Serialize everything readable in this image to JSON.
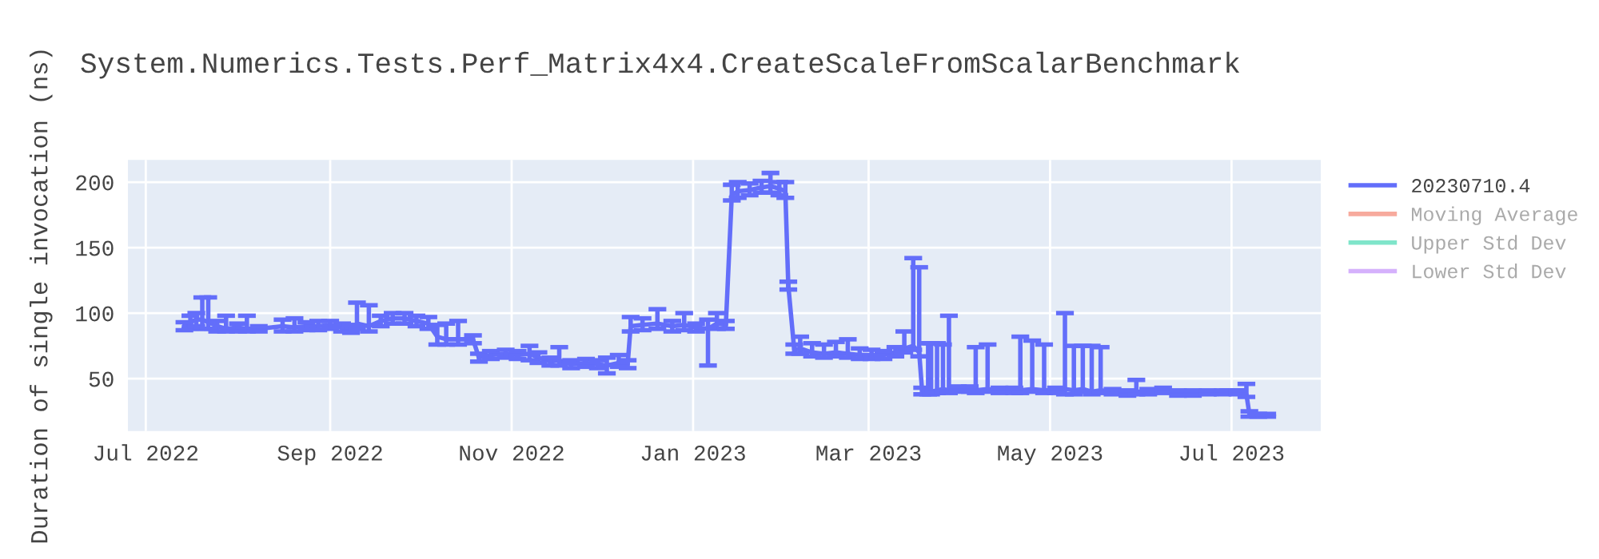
{
  "chart_data": {
    "type": "line",
    "title": "System.Numerics.Tests.Perf_Matrix4x4.CreateScaleFromScalarBenchmark",
    "ylabel": "Duration of single invocation (ns)",
    "xlim": [
      "2022-06-25",
      "2023-07-31"
    ],
    "xticks": [
      {
        "value": "2022-07-01",
        "label": "Jul 2022"
      },
      {
        "value": "2022-09-01",
        "label": "Sep 2022"
      },
      {
        "value": "2022-11-01",
        "label": "Nov 2022"
      },
      {
        "value": "2023-01-01",
        "label": "Jan 2023"
      },
      {
        "value": "2023-03-01",
        "label": "Mar 2023"
      },
      {
        "value": "2023-05-01",
        "label": "May 2023"
      },
      {
        "value": "2023-07-01",
        "label": "Jul 2023"
      }
    ],
    "ylim": [
      10,
      217
    ],
    "yticks": [
      50,
      100,
      150,
      200
    ],
    "grid": true,
    "legend": "top right",
    "series": [
      {
        "name": "20230710.4",
        "color": "#636efa",
        "x": [
          "2022-07-14",
          "2022-07-16",
          "2022-07-18",
          "2022-07-20",
          "2022-07-22",
          "2022-07-25",
          "2022-07-28",
          "2022-08-01",
          "2022-08-04",
          "2022-08-08",
          "2022-08-16",
          "2022-08-20",
          "2022-08-24",
          "2022-08-28",
          "2022-09-01",
          "2022-09-05",
          "2022-09-08",
          "2022-09-10",
          "2022-09-14",
          "2022-09-18",
          "2022-09-22",
          "2022-09-26",
          "2022-09-30",
          "2022-10-04",
          "2022-10-07",
          "2022-10-10",
          "2022-10-14",
          "2022-10-19",
          "2022-10-21",
          "2022-10-25",
          "2022-10-30",
          "2022-11-03",
          "2022-11-07",
          "2022-11-10",
          "2022-11-14",
          "2022-11-17",
          "2022-11-21",
          "2022-11-26",
          "2022-11-30",
          "2022-12-03",
          "2022-12-07",
          "2022-12-10",
          "2022-12-11",
          "2022-12-15",
          "2022-12-20",
          "2022-12-25",
          "2022-12-29",
          "2023-01-02",
          "2023-01-06",
          "2023-01-09",
          "2023-01-12",
          "2023-01-14",
          "2023-01-16",
          "2023-01-20",
          "2023-01-24",
          "2023-01-27",
          "2023-01-30",
          "2023-02-01",
          "2023-02-02",
          "2023-02-04",
          "2023-02-06",
          "2023-02-10",
          "2023-02-14",
          "2023-02-18",
          "2023-02-22",
          "2023-02-26",
          "2023-03-02",
          "2023-03-06",
          "2023-03-10",
          "2023-03-13",
          "2023-03-16",
          "2023-03-18",
          "2023-03-19",
          "2023-03-21",
          "2023-03-22",
          "2023-03-24",
          "2023-03-26",
          "2023-03-28",
          "2023-03-31",
          "2023-04-04",
          "2023-04-06",
          "2023-04-10",
          "2023-04-14",
          "2023-04-19",
          "2023-04-21",
          "2023-04-25",
          "2023-04-29",
          "2023-05-03",
          "2023-05-06",
          "2023-05-09",
          "2023-05-12",
          "2023-05-15",
          "2023-05-18",
          "2023-05-22",
          "2023-05-27",
          "2023-05-30",
          "2023-06-03",
          "2023-06-08",
          "2023-06-13",
          "2023-06-18",
          "2023-06-23",
          "2023-06-28",
          "2023-07-03",
          "2023-07-06",
          "2023-07-07",
          "2023-07-10",
          "2023-07-13"
        ],
        "values": [
          90,
          93,
          95,
          95,
          93,
          90,
          88,
          89,
          88,
          88,
          90,
          89,
          90,
          90,
          91,
          89,
          88,
          92,
          90,
          94,
          96,
          96,
          94,
          92,
          82,
          80,
          80,
          80,
          66,
          68,
          69,
          68,
          69,
          66,
          63,
          64,
          61,
          62,
          61,
          60,
          62,
          61,
          90,
          91,
          92,
          90,
          91,
          89,
          88,
          92,
          91,
          190,
          193,
          194,
          196,
          197,
          195,
          193,
          121,
          72,
          73,
          70,
          69,
          70,
          69,
          68,
          68,
          68,
          70,
          73,
          75,
          70,
          40,
          40,
          40,
          41,
          42,
          41,
          42,
          42,
          41,
          42,
          41,
          41,
          41,
          42,
          41,
          41,
          42,
          41,
          42,
          40,
          41,
          40,
          39,
          40,
          40,
          41,
          39,
          39,
          39,
          39,
          39,
          38,
          23,
          22,
          22
        ],
        "errors": [
          3,
          [
            88,
            98
          ],
          [
            90,
            100
          ],
          [
            88,
            112
          ],
          [
            88,
            112
          ],
          [
            86,
            94
          ],
          [
            86,
            98
          ],
          [
            86,
            92
          ],
          [
            86,
            98
          ],
          [
            86,
            90
          ],
          [
            86,
            95
          ],
          [
            86,
            96
          ],
          [
            87,
            93
          ],
          [
            87,
            94
          ],
          [
            88,
            94
          ],
          [
            86,
            92
          ],
          [
            85,
            91
          ],
          [
            88,
            108
          ],
          [
            86,
            106
          ],
          [
            90,
            98
          ],
          [
            92,
            100
          ],
          [
            92,
            100
          ],
          [
            90,
            98
          ],
          [
            88,
            97
          ],
          [
            76,
            91
          ],
          [
            76,
            92
          ],
          [
            76,
            94
          ],
          [
            77,
            83
          ],
          [
            63,
            69
          ],
          [
            65,
            71
          ],
          [
            66,
            72
          ],
          [
            65,
            71
          ],
          [
            64,
            75
          ],
          [
            62,
            70
          ],
          [
            60,
            66
          ],
          [
            60,
            74
          ],
          [
            58,
            64
          ],
          [
            59,
            65
          ],
          [
            58,
            64
          ],
          [
            54,
            66
          ],
          [
            59,
            68
          ],
          [
            58,
            64
          ],
          [
            86,
            97
          ],
          [
            87,
            96
          ],
          [
            88,
            103
          ],
          [
            86,
            94
          ],
          [
            87,
            100
          ],
          [
            86,
            92
          ],
          [
            60,
            95
          ],
          [
            88,
            100
          ],
          [
            88,
            94
          ],
          [
            186,
            198
          ],
          [
            188,
            200
          ],
          [
            190,
            199
          ],
          [
            192,
            201
          ],
          [
            192,
            207
          ],
          [
            190,
            200
          ],
          [
            188,
            200
          ],
          [
            118,
            124
          ],
          [
            69,
            76
          ],
          [
            69,
            82
          ],
          [
            67,
            77
          ],
          [
            66,
            76
          ],
          [
            67,
            78
          ],
          [
            66,
            80
          ],
          [
            65,
            73
          ],
          [
            65,
            72
          ],
          [
            65,
            71
          ],
          [
            67,
            74
          ],
          [
            70,
            86
          ],
          [
            72,
            142
          ],
          [
            67,
            135
          ],
          [
            38,
            43
          ],
          [
            38,
            77
          ],
          [
            38,
            77
          ],
          [
            39,
            77
          ],
          [
            40,
            76
          ],
          [
            39,
            98
          ],
          [
            40,
            44
          ],
          [
            40,
            44
          ],
          [
            39,
            74
          ],
          [
            40,
            76
          ],
          [
            39,
            43
          ],
          [
            39,
            43
          ],
          [
            39,
            82
          ],
          [
            40,
            79
          ],
          [
            39,
            76
          ],
          [
            39,
            43
          ],
          [
            38,
            100
          ],
          [
            38,
            75
          ],
          [
            40,
            75
          ],
          [
            38,
            75
          ],
          [
            39,
            74
          ],
          [
            38,
            42
          ],
          [
            37,
            41
          ],
          [
            38,
            49
          ],
          [
            38,
            42
          ],
          [
            39,
            43
          ],
          [
            37,
            41
          ],
          [
            37,
            41
          ],
          [
            38,
            41
          ],
          [
            38,
            41
          ],
          [
            38,
            41
          ],
          [
            36,
            46
          ],
          [
            21,
            25
          ],
          [
            21,
            23
          ],
          [
            21,
            23
          ]
        ]
      },
      {
        "name": "Moving Average",
        "color": "#ef553b"
      },
      {
        "name": "Upper Std Dev",
        "color": "#00cc96"
      },
      {
        "name": "Lower Std Dev",
        "color": "#ab63fa"
      }
    ]
  }
}
